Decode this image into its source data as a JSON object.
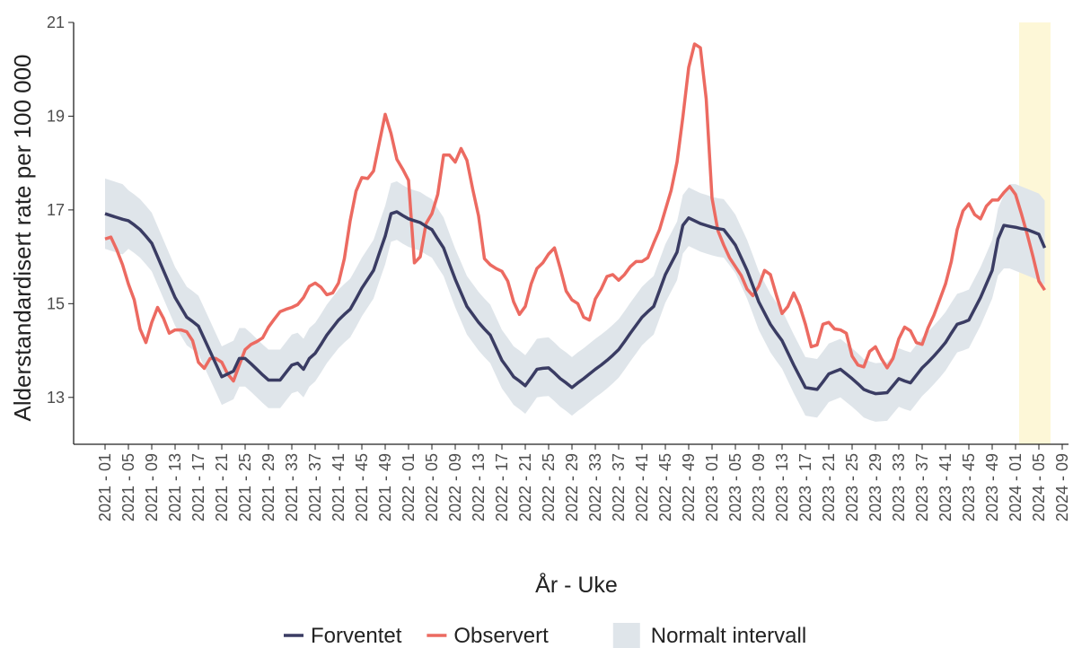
{
  "chart_data": {
    "type": "line",
    "y_label": "Alderstandardisert rate per 100 000",
    "x_label": "År - Uke",
    "ylim": [
      12,
      21
    ],
    "yticks": [
      13,
      15,
      17,
      19,
      21
    ],
    "categories": [
      "2021 - 01",
      null,
      null,
      null,
      "2021 - 05",
      null,
      null,
      null,
      "2021 - 09",
      null,
      null,
      null,
      "2021 - 13",
      null,
      null,
      null,
      "2021 - 17",
      null,
      null,
      null,
      "2021 - 21",
      null,
      null,
      null,
      "2021 - 25",
      null,
      null,
      null,
      "2021 - 29",
      null,
      null,
      null,
      "2021 - 33",
      null,
      null,
      null,
      "2021 - 37",
      null,
      null,
      null,
      "2021 - 41",
      null,
      null,
      null,
      "2021 - 45",
      null,
      null,
      null,
      "2021 - 49",
      null,
      null,
      null,
      "2022 - 01",
      null,
      null,
      null,
      "2022 - 05",
      null,
      null,
      null,
      "2022 - 09",
      null,
      null,
      null,
      "2022 - 13",
      null,
      null,
      null,
      "2022 - 17",
      null,
      null,
      null,
      "2022 - 21",
      null,
      null,
      null,
      "2022 - 25",
      null,
      null,
      null,
      "2022 - 29",
      null,
      null,
      null,
      "2022 - 33",
      null,
      null,
      null,
      "2022 - 37",
      null,
      null,
      null,
      "2022 - 41",
      null,
      null,
      null,
      "2022 - 45",
      null,
      null,
      null,
      "2022 - 49",
      null,
      null,
      null,
      "2023 - 01",
      null,
      null,
      null,
      "2023 - 05",
      null,
      null,
      null,
      "2023 - 09",
      null,
      null,
      null,
      "2023 - 13",
      null,
      null,
      null,
      "2023 - 17",
      null,
      null,
      null,
      "2023 - 21",
      null,
      null,
      null,
      "2023 - 25",
      null,
      null,
      null,
      "2023 - 29",
      null,
      null,
      null,
      "2023 - 33",
      null,
      null,
      null,
      "2023 - 37",
      null,
      null,
      null,
      "2023 - 41",
      null,
      null,
      null,
      "2023 - 45",
      null,
      null,
      null,
      "2023 - 49",
      null,
      null,
      null,
      "2024 - 01",
      null,
      null,
      null,
      "2024 - 05",
      null,
      null,
      null,
      "2024 - 09"
    ],
    "band": {
      "name": "Normalt intervall",
      "color": "#dfe5ea",
      "upper": [
        17.67,
        17.63,
        17.59,
        17.55,
        17.42,
        17.33,
        17.23,
        17.09,
        16.94,
        16.65,
        16.36,
        16.07,
        15.78,
        15.57,
        15.36,
        15.27,
        15.17,
        14.9,
        14.63,
        14.36,
        14.09,
        14.15,
        14.21,
        14.48,
        14.48,
        14.37,
        14.25,
        14.13,
        14.02,
        14.02,
        14.02,
        14.18,
        14.34,
        14.38,
        14.25,
        14.48,
        14.59,
        14.78,
        14.98,
        15.14,
        15.3,
        15.42,
        15.53,
        15.75,
        15.98,
        16.17,
        16.36,
        16.73,
        17.09,
        17.57,
        17.61,
        17.53,
        17.46,
        17.42,
        17.38,
        17.3,
        17.23,
        17.03,
        16.84,
        16.5,
        16.17,
        15.88,
        15.59,
        15.42,
        15.25,
        15.11,
        14.98,
        14.71,
        14.44,
        14.27,
        14.09,
        14.0,
        13.9,
        14.07,
        14.25,
        14.27,
        14.28,
        14.17,
        14.05,
        13.96,
        13.86,
        13.96,
        14.05,
        14.15,
        14.25,
        14.34,
        14.44,
        14.55,
        14.67,
        14.84,
        15.02,
        15.19,
        15.36,
        15.48,
        15.59,
        15.93,
        16.27,
        16.51,
        16.75,
        17.32,
        17.48,
        17.42,
        17.36,
        17.32,
        17.28,
        17.25,
        17.23,
        17.07,
        16.9,
        16.63,
        16.36,
        16.03,
        15.69,
        15.45,
        15.21,
        15.03,
        14.86,
        14.6,
        14.34,
        14.1,
        13.86,
        13.84,
        13.82,
        13.98,
        14.15,
        14.2,
        14.25,
        14.15,
        14.05,
        13.94,
        13.82,
        13.77,
        13.73,
        13.74,
        13.75,
        13.9,
        14.05,
        14.0,
        13.96,
        14.12,
        14.28,
        14.4,
        14.53,
        14.67,
        14.82,
        15.02,
        15.21,
        15.25,
        15.3,
        15.54,
        15.78,
        16.07,
        16.36,
        17.03,
        17.32,
        17.55,
        17.55,
        17.5,
        17.45,
        17.4,
        17.35,
        17.2,
        null,
        null,
        null
      ],
      "lower": [
        16.17,
        16.13,
        16.09,
        16.05,
        16.17,
        16.08,
        15.98,
        15.84,
        15.69,
        15.4,
        15.11,
        14.82,
        14.53,
        14.32,
        14.11,
        14.02,
        13.92,
        13.65,
        13.38,
        13.11,
        12.84,
        12.9,
        12.96,
        13.23,
        13.23,
        13.12,
        13.0,
        12.88,
        12.77,
        12.77,
        12.77,
        12.93,
        13.09,
        13.13,
        13.0,
        13.23,
        13.34,
        13.53,
        13.73,
        13.89,
        14.05,
        14.17,
        14.28,
        14.5,
        14.73,
        14.92,
        15.11,
        15.48,
        15.84,
        16.32,
        16.36,
        16.28,
        16.21,
        16.17,
        16.13,
        16.05,
        15.98,
        15.78,
        15.59,
        15.25,
        14.92,
        14.63,
        14.34,
        14.17,
        14.0,
        13.86,
        13.73,
        13.46,
        13.19,
        13.02,
        12.84,
        12.75,
        12.65,
        12.82,
        13.0,
        13.02,
        13.03,
        12.92,
        12.8,
        12.71,
        12.61,
        12.71,
        12.8,
        12.9,
        13.0,
        13.09,
        13.19,
        13.3,
        13.42,
        13.59,
        13.77,
        13.94,
        14.11,
        14.23,
        14.34,
        14.68,
        15.02,
        15.26,
        15.5,
        16.07,
        16.23,
        16.17,
        16.11,
        16.07,
        16.03,
        16.0,
        15.98,
        15.82,
        15.65,
        15.38,
        15.11,
        14.78,
        14.44,
        14.2,
        13.96,
        13.78,
        13.61,
        13.35,
        13.09,
        12.85,
        12.61,
        12.59,
        12.57,
        12.73,
        12.9,
        12.95,
        13.0,
        12.9,
        12.8,
        12.69,
        12.57,
        12.52,
        12.48,
        12.49,
        12.5,
        12.65,
        12.8,
        12.75,
        12.71,
        12.87,
        13.03,
        13.15,
        13.28,
        13.42,
        13.57,
        13.77,
        13.96,
        14.0,
        14.05,
        14.29,
        14.53,
        14.82,
        15.11,
        15.6,
        15.75,
        15.75,
        15.7,
        15.65,
        15.6,
        15.55,
        15.5,
        15.4,
        null,
        null,
        null
      ]
    },
    "series": [
      {
        "name": "Forventet",
        "color": "#3a3c63",
        "values": [
          16.92,
          16.88,
          16.84,
          16.8,
          16.77,
          16.68,
          16.58,
          16.44,
          16.29,
          16.0,
          15.71,
          15.42,
          15.13,
          14.92,
          14.71,
          14.62,
          14.52,
          14.25,
          13.98,
          13.71,
          13.44,
          13.5,
          13.56,
          13.83,
          13.83,
          13.72,
          13.6,
          13.48,
          13.37,
          13.37,
          13.37,
          13.53,
          13.69,
          13.73,
          13.6,
          13.83,
          13.94,
          14.13,
          14.33,
          14.49,
          14.65,
          14.77,
          14.88,
          15.1,
          15.33,
          15.52,
          15.71,
          16.08,
          16.44,
          16.92,
          16.96,
          16.88,
          16.81,
          16.77,
          16.73,
          16.65,
          16.58,
          16.38,
          16.19,
          15.85,
          15.52,
          15.23,
          14.94,
          14.77,
          14.6,
          14.46,
          14.33,
          14.06,
          13.79,
          13.62,
          13.44,
          13.35,
          13.25,
          13.42,
          13.6,
          13.62,
          13.63,
          13.52,
          13.4,
          13.31,
          13.21,
          13.31,
          13.4,
          13.5,
          13.6,
          13.69,
          13.79,
          13.9,
          14.02,
          14.19,
          14.37,
          14.54,
          14.71,
          14.83,
          14.94,
          15.28,
          15.62,
          15.86,
          16.1,
          16.67,
          16.83,
          16.77,
          16.71,
          16.67,
          16.63,
          16.6,
          16.58,
          16.42,
          16.25,
          15.98,
          15.71,
          15.38,
          15.04,
          14.8,
          14.56,
          14.38,
          14.21,
          13.95,
          13.69,
          13.45,
          13.21,
          13.19,
          13.17,
          13.33,
          13.5,
          13.55,
          13.6,
          13.5,
          13.4,
          13.29,
          13.17,
          13.12,
          13.08,
          13.09,
          13.1,
          13.25,
          13.4,
          13.35,
          13.31,
          13.47,
          13.63,
          13.75,
          13.88,
          14.02,
          14.17,
          14.37,
          14.56,
          14.6,
          14.65,
          14.89,
          15.13,
          15.42,
          15.71,
          16.38,
          16.67,
          16.65,
          16.63,
          16.6,
          16.58,
          16.53,
          16.48,
          16.19,
          null,
          null,
          null
        ]
      },
      {
        "name": "Observert",
        "color": "#ec6a61",
        "values": [
          16.38,
          16.42,
          16.15,
          15.83,
          15.42,
          15.08,
          14.46,
          14.17,
          14.6,
          14.92,
          14.69,
          14.37,
          14.44,
          14.44,
          14.4,
          14.21,
          13.75,
          13.62,
          13.83,
          13.83,
          13.75,
          13.5,
          13.35,
          13.69,
          14.02,
          14.13,
          14.19,
          14.27,
          14.5,
          14.67,
          14.83,
          14.88,
          14.92,
          14.98,
          15.13,
          15.37,
          15.44,
          15.35,
          15.19,
          15.23,
          15.44,
          15.96,
          16.77,
          17.4,
          17.69,
          17.67,
          17.83,
          18.44,
          19.04,
          18.63,
          18.08,
          17.87,
          17.63,
          15.87,
          16.0,
          16.71,
          16.92,
          17.33,
          18.17,
          18.17,
          18.02,
          18.31,
          18.06,
          17.44,
          16.87,
          15.96,
          15.83,
          15.75,
          15.69,
          15.48,
          15.04,
          14.77,
          14.94,
          15.42,
          15.75,
          15.87,
          16.06,
          16.19,
          15.75,
          15.27,
          15.08,
          15.0,
          14.71,
          14.65,
          15.1,
          15.31,
          15.58,
          15.62,
          15.5,
          15.62,
          15.79,
          15.9,
          15.9,
          15.98,
          16.29,
          16.58,
          17.0,
          17.42,
          18.02,
          18.98,
          20.04,
          20.54,
          20.46,
          19.37,
          17.25,
          16.56,
          16.25,
          15.98,
          15.79,
          15.6,
          15.31,
          15.17,
          15.37,
          15.71,
          15.62,
          15.19,
          14.79,
          14.94,
          15.23,
          14.96,
          14.56,
          14.08,
          14.12,
          14.56,
          14.6,
          14.46,
          14.44,
          14.37,
          13.88,
          13.69,
          13.65,
          13.98,
          14.08,
          13.83,
          13.63,
          13.83,
          14.25,
          14.5,
          14.42,
          14.17,
          14.13,
          14.48,
          14.75,
          15.08,
          15.42,
          15.9,
          16.58,
          16.98,
          17.13,
          16.9,
          16.81,
          17.08,
          17.21,
          17.21,
          17.37,
          17.5,
          17.33,
          16.92,
          16.48,
          16.0,
          15.48,
          15.29,
          null,
          null,
          null
        ]
      }
    ],
    "highlight": {
      "from": "2024 - 01",
      "color": "#fdf7d7"
    }
  }
}
